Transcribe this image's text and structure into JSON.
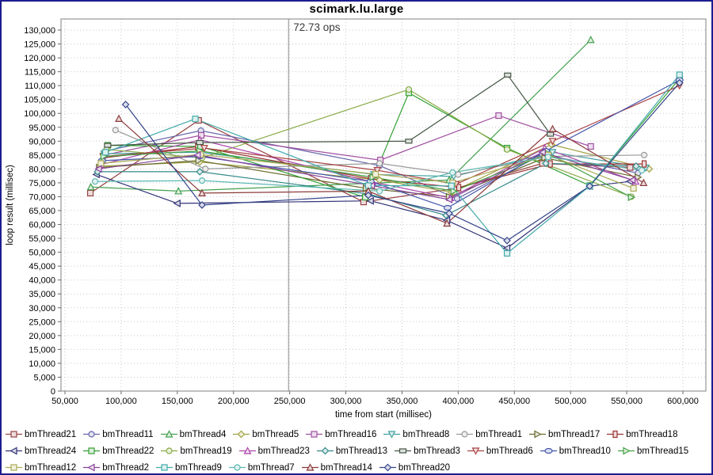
{
  "window": {
    "border_color": "#1c1c8f",
    "background": "#ffffff"
  },
  "chart_data": {
    "type": "line",
    "title": "scimark.lu.large",
    "annotation": {
      "text": "72.73 ops",
      "t": 249000
    },
    "xlabel": "time from start (millisec)",
    "ylabel": "loop result (millisec)",
    "xlim": [
      50000,
      600000
    ],
    "xstep": 50000,
    "ylim": [
      0,
      130000
    ],
    "ystep": 5000,
    "grid": true,
    "legend_position": "bottom",
    "legend_rows": [
      [
        "bmThread21",
        "bmThread11",
        "bmThread4",
        "bmThread5",
        "bmThread16",
        "bmThread8",
        "bmThread1",
        "bmThread17",
        "bmThread18"
      ],
      [
        "bmThread24",
        "bmThread22",
        "bmThread19",
        "bmThread23",
        "bmThread13",
        "bmThread3",
        "bmThread6",
        "bmThread10",
        "bmThread15"
      ],
      [
        "bmThread12",
        "bmThread2",
        "bmThread9",
        "bmThread7",
        "bmThread14",
        "bmThread20"
      ]
    ],
    "series": [
      {
        "name": "bmThread21",
        "color": "#994444",
        "marker": "square",
        "points": [
          [
            72600,
            71300
          ],
          [
            169000,
            97500
          ],
          [
            315800,
            68100
          ],
          [
            398000,
            73000
          ],
          [
            475000,
            82000
          ],
          [
            553000,
            80500
          ]
        ]
      },
      {
        "name": "bmThread11",
        "color": "#6666aa",
        "marker": "circle",
        "points": [
          [
            86500,
            86500
          ],
          [
            171000,
            93800
          ],
          [
            330000,
            81200
          ],
          [
            399000,
            69300
          ],
          [
            475000,
            85200
          ],
          [
            560000,
            78500
          ]
        ]
      },
      {
        "name": "bmThread4",
        "color": "#44a050",
        "marker": "tri-up",
        "points": [
          [
            73000,
            73500
          ],
          [
            151000,
            72000
          ],
          [
            392000,
            76000
          ],
          [
            518000,
            126500
          ]
        ]
      },
      {
        "name": "bmThread5",
        "color": "#a0a040",
        "marker": "diamond",
        "points": [
          [
            81000,
            81000
          ],
          [
            170000,
            82500
          ],
          [
            330000,
            76000
          ],
          [
            394000,
            71600
          ],
          [
            483000,
            88800
          ],
          [
            570000,
            80000
          ]
        ]
      },
      {
        "name": "bmThread16",
        "color": "#a050a0",
        "marker": "square",
        "points": [
          [
            85000,
            85000
          ],
          [
            171300,
            92100
          ],
          [
            330700,
            83200
          ],
          [
            436000,
            99200
          ],
          [
            518000,
            88100
          ]
        ]
      },
      {
        "name": "bmThread8",
        "color": "#44a0a0",
        "marker": "tri-down",
        "points": [
          [
            85000,
            85500
          ],
          [
            170000,
            86000
          ],
          [
            325000,
            78000
          ],
          [
            396000,
            77300
          ],
          [
            484000,
            86000
          ],
          [
            566900,
            80400
          ]
        ]
      },
      {
        "name": "bmThread1",
        "color": "#999999",
        "marker": "circle",
        "points": [
          [
            95000,
            94000
          ],
          [
            175000,
            80000
          ],
          [
            330000,
            82000
          ],
          [
            400000,
            78000
          ],
          [
            480000,
            84500
          ],
          [
            565500,
            85000
          ]
        ]
      },
      {
        "name": "bmThread17",
        "color": "#6b6b2f",
        "marker": "tri-right",
        "points": [
          [
            80500,
            80500
          ],
          [
            169000,
            83000
          ],
          [
            318000,
            73000
          ],
          [
            392000,
            70000
          ],
          [
            477000,
            84000
          ],
          [
            560000,
            77000
          ]
        ]
      },
      {
        "name": "bmThread18",
        "color": "#993333",
        "marker": "rect-v",
        "points": [
          [
            84000,
            84000
          ],
          [
            168000,
            88000
          ],
          [
            322000,
            76500
          ],
          [
            400500,
            73300
          ],
          [
            482000,
            81800
          ],
          [
            565500,
            81800
          ]
        ]
      },
      {
        "name": "bmThread24",
        "color": "#333377",
        "marker": "tri-left",
        "points": [
          [
            78000,
            78000
          ],
          [
            150000,
            67600
          ],
          [
            322000,
            68500
          ],
          [
            390000,
            61500
          ],
          [
            443500,
            51500
          ],
          [
            517000,
            73800
          ],
          [
            552800,
            75500
          ]
        ]
      },
      {
        "name": "bmThread22",
        "color": "#33a033",
        "marker": "square",
        "points": [
          [
            88000,
            88500
          ],
          [
            170600,
            88100
          ],
          [
            317300,
            69800
          ],
          [
            356000,
            107400
          ],
          [
            443500,
            87500
          ],
          [
            517000,
            74000
          ],
          [
            597000,
            112500
          ]
        ]
      },
      {
        "name": "bmThread19",
        "color": "#88aa44",
        "marker": "circle",
        "points": [
          [
            87000,
            87000
          ],
          [
            172000,
            84000
          ],
          [
            356000,
            108600
          ],
          [
            443500,
            87000
          ],
          [
            554000,
            70000
          ]
        ]
      },
      {
        "name": "bmThread23",
        "color": "#aa44aa",
        "marker": "tri-up",
        "points": [
          [
            81500,
            81500
          ],
          [
            170000,
            90500
          ],
          [
            323700,
            75300
          ],
          [
            393000,
            69600
          ],
          [
            477000,
            87500
          ],
          [
            558000,
            75500
          ]
        ]
      },
      {
        "name": "bmThread13",
        "color": "#338888",
        "marker": "diamond",
        "points": [
          [
            79000,
            79000
          ],
          [
            170000,
            79000
          ],
          [
            320000,
            71000
          ],
          [
            389200,
            63300
          ],
          [
            478000,
            82000
          ],
          [
            558400,
            81000
          ]
        ]
      },
      {
        "name": "bmThread3",
        "color": "#445544",
        "marker": "rect-h",
        "points": [
          [
            88000,
            88500
          ],
          [
            170000,
            89500
          ],
          [
            356000,
            90000
          ],
          [
            444000,
            113800
          ],
          [
            482000,
            92500
          ]
        ]
      },
      {
        "name": "bmThread6",
        "color": "#aa4444",
        "marker": "tri-down",
        "points": [
          [
            84000,
            84500
          ],
          [
            174000,
            87500
          ],
          [
            328000,
            79500
          ],
          [
            398000,
            74500
          ],
          [
            484000,
            90000
          ],
          [
            597000,
            110000
          ]
        ]
      },
      {
        "name": "bmThread10",
        "color": "#4455aa",
        "marker": "ellipse",
        "points": [
          [
            83000,
            83000
          ],
          [
            170000,
            84500
          ],
          [
            322000,
            75500
          ],
          [
            390600,
            66000
          ],
          [
            478000,
            86500
          ],
          [
            597000,
            112000
          ]
        ]
      },
      {
        "name": "bmThread15",
        "color": "#44a044",
        "marker": "tri-right",
        "points": [
          [
            84500,
            84500
          ],
          [
            170000,
            86500
          ],
          [
            324000,
            77000
          ],
          [
            396000,
            72000
          ],
          [
            480000,
            85500
          ],
          [
            554000,
            69800
          ]
        ]
      },
      {
        "name": "bmThread12",
        "color": "#aaaa55",
        "marker": "square",
        "points": [
          [
            82000,
            82000
          ],
          [
            170600,
            85200
          ],
          [
            326500,
            78100
          ],
          [
            395000,
            75000
          ],
          [
            480000,
            85000
          ],
          [
            556000,
            73000
          ]
        ]
      },
      {
        "name": "bmThread2",
        "color": "#884499",
        "marker": "tri-left",
        "points": [
          [
            80000,
            80000
          ],
          [
            168000,
            85000
          ],
          [
            323000,
            74000
          ],
          [
            392000,
            69000
          ],
          [
            475000,
            86000
          ],
          [
            555000,
            76000
          ]
        ]
      },
      {
        "name": "bmThread9",
        "color": "#44aaaa",
        "marker": "square",
        "points": [
          [
            86000,
            86000
          ],
          [
            166000,
            98000
          ],
          [
            320000,
            74000
          ],
          [
            394000,
            73900
          ],
          [
            443500,
            49600
          ],
          [
            517000,
            73800
          ],
          [
            597000,
            113900
          ]
        ]
      },
      {
        "name": "bmThread7",
        "color": "#5cb8b2",
        "marker": "circle",
        "points": [
          [
            76800,
            75500
          ],
          [
            172000,
            75800
          ],
          [
            330000,
            72000
          ],
          [
            395000,
            78700
          ],
          [
            480000,
            84300
          ],
          [
            563400,
            79500
          ]
        ]
      },
      {
        "name": "bmThread14",
        "color": "#8b3a3a",
        "marker": "tri-up",
        "points": [
          [
            98000,
            98100
          ],
          [
            172000,
            71300
          ],
          [
            320000,
            72000
          ],
          [
            390000,
            60400
          ],
          [
            484000,
            94400
          ],
          [
            565000,
            75000
          ]
        ]
      },
      {
        "name": "bmThread20",
        "color": "#334488",
        "marker": "diamond",
        "points": [
          [
            104000,
            103200
          ],
          [
            172000,
            67000
          ],
          [
            320000,
            70500
          ],
          [
            392000,
            64000
          ],
          [
            443500,
            54200
          ],
          [
            517000,
            73800
          ],
          [
            597000,
            111000
          ]
        ]
      }
    ]
  }
}
